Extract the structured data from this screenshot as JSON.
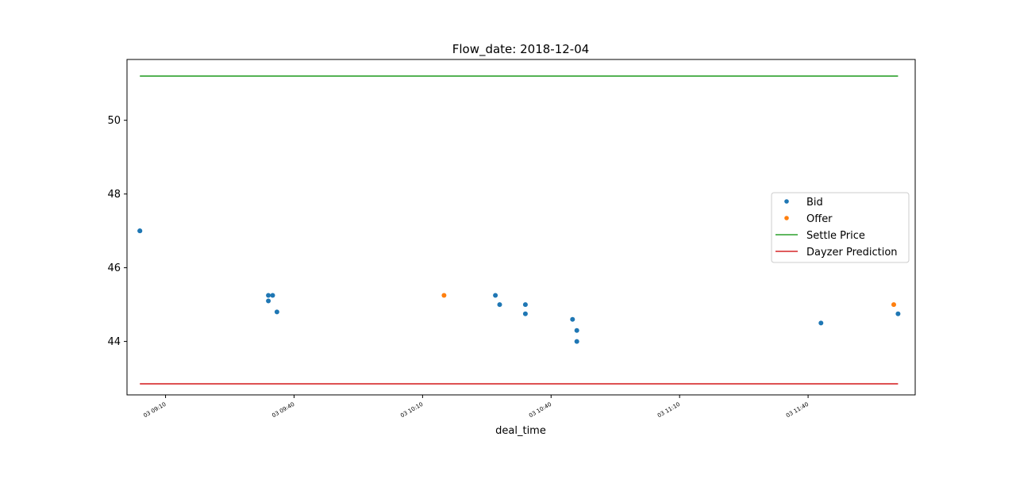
{
  "chart_data": {
    "type": "scatter",
    "title": "Flow_date: 2018-12-04",
    "xlabel": "deal_time",
    "ylabel": "",
    "x_range": [
      "2018-12-03 09:01",
      "2018-12-03 12:05"
    ],
    "ylim": [
      42.55,
      51.65
    ],
    "yticks": [
      44,
      46,
      48,
      50
    ],
    "xticks": [
      {
        "t": "09:10",
        "label": "03 09:10"
      },
      {
        "t": "09:40",
        "label": "03 09:40"
      },
      {
        "t": "10:10",
        "label": "03 10:10"
      },
      {
        "t": "10:40",
        "label": "03 10:40"
      },
      {
        "t": "11:10",
        "label": "03 11:10"
      },
      {
        "t": "11:40",
        "label": "03 11:40"
      }
    ],
    "legend_position": "center-right",
    "grid": false,
    "series": [
      {
        "name": "Bid",
        "kind": "points",
        "color": "#1f77b4",
        "points": [
          {
            "t": "09:04",
            "y": 47.0
          },
          {
            "t": "09:04",
            "y": 47.0
          },
          {
            "t": "09:34",
            "y": 45.25
          },
          {
            "t": "09:34",
            "y": 45.1
          },
          {
            "t": "09:35",
            "y": 45.25
          },
          {
            "t": "09:36",
            "y": 44.8
          },
          {
            "t": "10:27",
            "y": 45.25
          },
          {
            "t": "10:28",
            "y": 45.0
          },
          {
            "t": "10:34",
            "y": 45.0
          },
          {
            "t": "10:34",
            "y": 44.75
          },
          {
            "t": "10:45",
            "y": 44.6
          },
          {
            "t": "10:46",
            "y": 44.3
          },
          {
            "t": "10:46",
            "y": 44.0
          },
          {
            "t": "11:43",
            "y": 44.5
          },
          {
            "t": "12:01",
            "y": 44.75
          }
        ]
      },
      {
        "name": "Offer",
        "kind": "points",
        "color": "#ff7f0e",
        "points": [
          {
            "t": "10:15",
            "y": 45.25
          },
          {
            "t": "12:00",
            "y": 45.0
          }
        ]
      },
      {
        "name": "Settle Price",
        "kind": "line",
        "color": "#2ca02c",
        "points": [
          {
            "t": "09:04",
            "y": 51.2
          },
          {
            "t": "12:01",
            "y": 51.2
          }
        ]
      },
      {
        "name": "Dayzer Prediction",
        "kind": "line",
        "color": "#d62728",
        "points": [
          {
            "t": "09:04",
            "y": 42.85
          },
          {
            "t": "12:01",
            "y": 42.85
          }
        ]
      }
    ]
  }
}
